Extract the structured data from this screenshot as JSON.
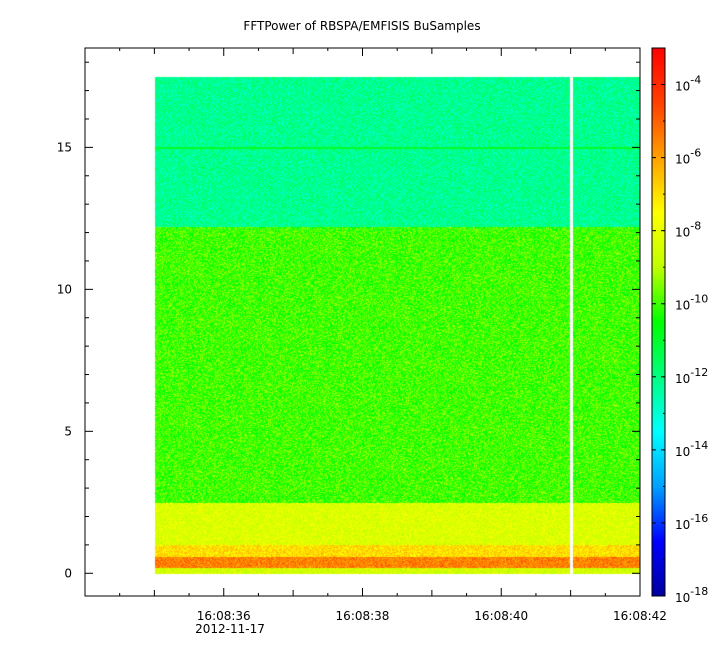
{
  "chart_data": {
    "type": "heatmap",
    "title": "FFTPower of RBSPA/EMFISIS  BuSamples",
    "xlabel": "",
    "ylabel": "",
    "x_axis": {
      "range": [
        "16:08:34",
        "16:08:42"
      ],
      "tick_labels": [
        "16:08:36",
        "16:08:38",
        "16:08:40",
        "16:08:42"
      ],
      "tick_values_seconds_past_16_08": [
        36,
        38,
        40,
        42
      ],
      "date_label": "2012-11-17"
    },
    "y_axis": {
      "range": [
        -0.8,
        18.5
      ],
      "tick_labels": [
        "0",
        "5",
        "10",
        "15"
      ],
      "tick_values": [
        0,
        5,
        10,
        15
      ]
    },
    "colorbar": {
      "scale": "log",
      "range": [
        1e-18,
        0.001
      ],
      "tick_labels": [
        {
          "base": "10",
          "exp": "-4",
          "value": 0.0001
        },
        {
          "base": "10",
          "exp": "-6",
          "value": 1e-06
        },
        {
          "base": "10",
          "exp": "-8",
          "value": 1e-08
        },
        {
          "base": "10",
          "exp": "-10",
          "value": 1e-10
        },
        {
          "base": "10",
          "exp": "-12",
          "value": 1e-12
        },
        {
          "base": "10",
          "exp": "-14",
          "value": 1e-14
        },
        {
          "base": "10",
          "exp": "-16",
          "value": 1e-16
        },
        {
          "base": "10",
          "exp": "-18",
          "value": 1e-18
        }
      ],
      "colors": [
        "#0000a0",
        "#0000ff",
        "#00a0ff",
        "#00ffff",
        "#00ff80",
        "#00ff00",
        "#c0ff00",
        "#ffff00",
        "#ffa000",
        "#ff4000",
        "#ff0000"
      ]
    },
    "data_extent": {
      "time_start": "16:08:35",
      "time_end": "16:08:42",
      "freq_min": 0,
      "freq_max": 17.5
    },
    "data_gap_at": "16:08:41.0",
    "bands": [
      {
        "freq_range": [
          0,
          0.2
        ],
        "log10_power": -8.5
      },
      {
        "freq_range": [
          0.2,
          0.6
        ],
        "log10_power": -5.5
      },
      {
        "freq_range": [
          0.6,
          1.0
        ],
        "log10_power": -7.0
      },
      {
        "freq_range": [
          1.0,
          2.5
        ],
        "log10_power": -8.3
      },
      {
        "freq_range": [
          2.5,
          12.2
        ],
        "log10_power": -10.0
      },
      {
        "freq_range": [
          12.2,
          17.5
        ],
        "log10_power": -12.2
      }
    ],
    "line_feature": {
      "freq": 15.0,
      "log10_power": -11.0
    }
  }
}
